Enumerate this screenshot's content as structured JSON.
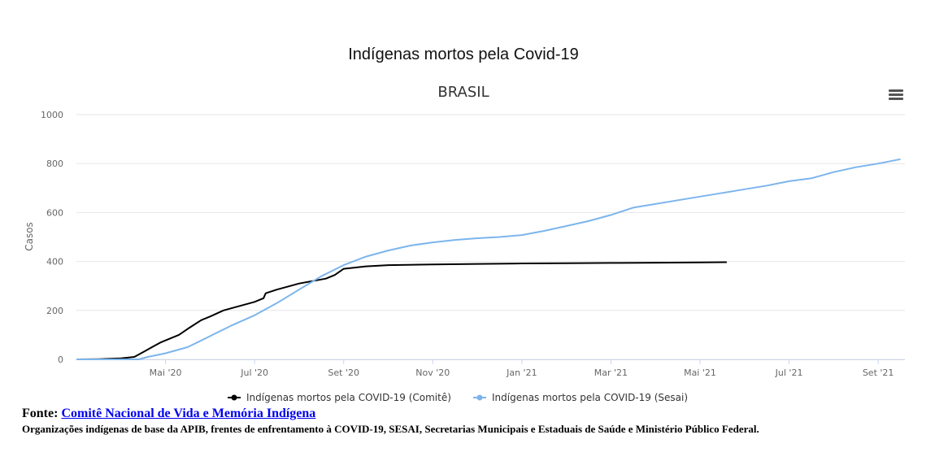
{
  "page": {
    "title": "Indígenas mortos pela Covid-19"
  },
  "chart_data": {
    "type": "line",
    "title": "BRASIL",
    "xlabel": "",
    "ylabel": "Casos",
    "ylim": [
      0,
      1000
    ],
    "yticks": [
      0,
      200,
      400,
      600,
      800,
      1000
    ],
    "xlim": [
      0,
      18.6
    ],
    "x_unit": "months since 1 Mar 2020",
    "xticks": [
      {
        "x": 2,
        "label": "Mai '20"
      },
      {
        "x": 4,
        "label": "Jul '20"
      },
      {
        "x": 6,
        "label": "Set '20"
      },
      {
        "x": 8,
        "label": "Nov '20"
      },
      {
        "x": 10,
        "label": "Jan '21"
      },
      {
        "x": 12,
        "label": "Mar '21"
      },
      {
        "x": 14,
        "label": "Mai '21"
      },
      {
        "x": 16,
        "label": "Jul '21"
      },
      {
        "x": 18,
        "label": "Set '21"
      }
    ],
    "grid": true,
    "legend_position": "bottom",
    "series": [
      {
        "name": "Indígenas mortos pela COVID-19 (Comitê)",
        "color": "#000000",
        "x": [
          0.0,
          0.5,
          1.0,
          1.3,
          1.5,
          1.7,
          1.9,
          2.1,
          2.3,
          2.5,
          2.8,
          3.0,
          3.3,
          3.6,
          3.8,
          4.0,
          4.2,
          4.25,
          4.5,
          4.8,
          5.0,
          5.3,
          5.6,
          5.8,
          6.0,
          6.5,
          7.0,
          8.0,
          9.0,
          10.0,
          11.0,
          12.0,
          13.0,
          14.0,
          14.6
        ],
        "values": [
          0,
          1,
          4,
          10,
          30,
          50,
          70,
          85,
          100,
          125,
          160,
          175,
          200,
          215,
          225,
          235,
          250,
          270,
          285,
          300,
          310,
          320,
          330,
          345,
          370,
          380,
          385,
          388,
          390,
          392,
          393,
          394,
          395,
          396,
          397
        ]
      },
      {
        "name": "Indígenas mortos pela COVID-19 (Sesai)",
        "color": "#7cb5ec",
        "x": [
          0.0,
          1.0,
          1.4,
          1.6,
          2.0,
          2.5,
          3.0,
          3.5,
          4.0,
          4.5,
          5.0,
          5.5,
          6.0,
          6.5,
          7.0,
          7.5,
          8.0,
          8.5,
          9.0,
          9.5,
          10.0,
          10.5,
          11.0,
          11.5,
          12.0,
          12.5,
          13.0,
          13.5,
          14.0,
          14.5,
          15.0,
          15.5,
          16.0,
          16.5,
          17.0,
          17.5,
          18.0,
          18.5
        ],
        "values": [
          0,
          0,
          0,
          10,
          25,
          50,
          95,
          140,
          180,
          230,
          285,
          340,
          385,
          420,
          445,
          465,
          478,
          488,
          495,
          500,
          508,
          525,
          545,
          565,
          590,
          620,
          635,
          650,
          665,
          680,
          695,
          710,
          728,
          740,
          765,
          785,
          800,
          818
        ]
      }
    ]
  },
  "source": {
    "label": "Fonte:",
    "link_text": "Comitê Nacional de Vida e Memória Indígena",
    "note": "Organizações indígenas de base da APIB, frentes de enfrentamento à COVID-19, SESAI, Secretarias Municipais e Estaduais de Saúde e Ministério Público Federal."
  }
}
